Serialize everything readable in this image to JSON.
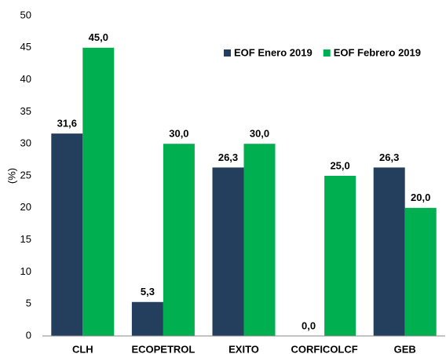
{
  "chart_data": {
    "type": "bar",
    "y_label": "(%)",
    "categories": [
      "CLH",
      "ECOPETROL",
      "EXITO",
      "CORFICOLCF",
      "GEB"
    ],
    "series": [
      {
        "name": "EOF Enero 2019",
        "color": "#243f5e",
        "values": [
          31.6,
          5.3,
          26.3,
          0.0,
          26.3
        ],
        "value_labels": [
          "31,6",
          "5,3",
          "26,3",
          "0,0",
          "26,3"
        ]
      },
      {
        "name": "EOF Febrero 2019",
        "color": "#00b050",
        "values": [
          45.0,
          30.0,
          30.0,
          25.0,
          20.0
        ],
        "value_labels": [
          "45,0",
          "30,0",
          "30,0",
          "25,0",
          "20,0"
        ]
      }
    ],
    "ylim": [
      0,
      50
    ],
    "yticks": [
      0,
      5,
      10,
      15,
      20,
      25,
      30,
      35,
      40,
      45,
      50
    ],
    "grid": false,
    "legend": "top-right"
  }
}
